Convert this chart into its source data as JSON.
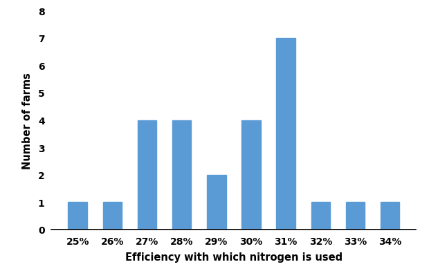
{
  "categories": [
    "25%",
    "26%",
    "27%",
    "28%",
    "29%",
    "30%",
    "31%",
    "32%",
    "33%",
    "34%"
  ],
  "values": [
    1,
    1,
    4,
    4,
    2,
    4,
    7,
    1,
    1,
    1
  ],
  "bar_color": "#5B9BD5",
  "xlabel": "Efficiency with which nitrogen is used",
  "ylabel": "Number of farms",
  "ylim": [
    0,
    8
  ],
  "yticks": [
    0,
    1,
    2,
    3,
    4,
    5,
    6,
    7,
    8
  ],
  "xlabel_fontsize": 10.5,
  "ylabel_fontsize": 10.5,
  "tick_fontsize": 10,
  "bar_width": 0.55
}
